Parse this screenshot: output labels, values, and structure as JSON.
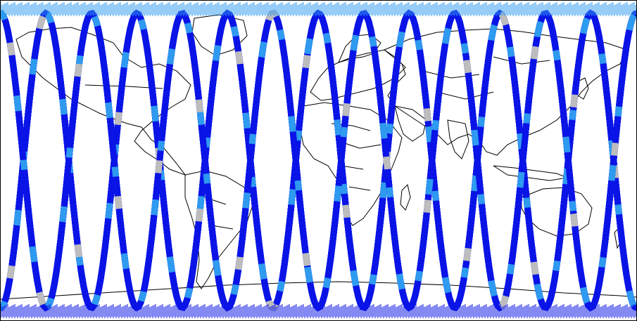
{
  "map": {
    "projection": "equirectangular",
    "background_color": "#ffffff",
    "coastline_color": "#000000",
    "track_colors": {
      "primary": "#0a14e6",
      "secondary": "#2e9af0",
      "gap": "#bdbdbd"
    },
    "swath_count": 14
  }
}
